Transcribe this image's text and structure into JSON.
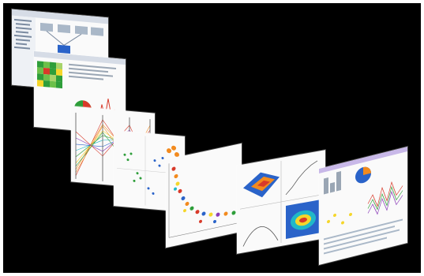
{
  "scene": {
    "background": "#000000",
    "frame": "#ffffff",
    "description_icon": "cascading-visualization-screenshots",
    "accents": {
      "green": "#2e9e3a",
      "red": "#d83a2a",
      "blue": "#2a63c9",
      "orange": "#f28a1e",
      "yellow": "#f5d62a",
      "purple": "#8a3bb8",
      "cyan": "#20b8c8"
    }
  }
}
